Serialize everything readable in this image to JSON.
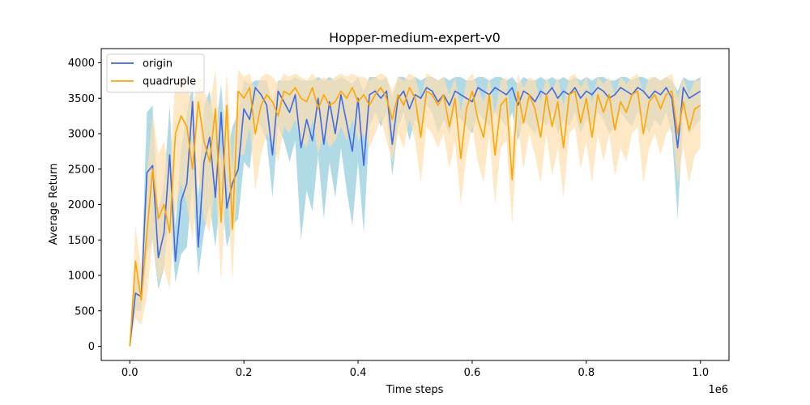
{
  "chart_data": {
    "type": "line",
    "title": "Hopper-medium-expert-v0",
    "xlabel": "Time steps",
    "ylabel": "Average Return",
    "x_offset_label": "1e6",
    "xlim": [
      -0.05,
      1.05
    ],
    "ylim": [
      -200,
      4200
    ],
    "x_ticks": [
      0.0,
      0.2,
      0.4,
      0.6,
      0.8,
      1.0
    ],
    "x_tick_labels": [
      "0.0",
      "0.2",
      "0.4",
      "0.6",
      "0.8",
      "1.0"
    ],
    "y_ticks": [
      0,
      500,
      1000,
      1500,
      2000,
      2500,
      3000,
      3500,
      4000
    ],
    "y_tick_labels": [
      "0",
      "500",
      "1000",
      "1500",
      "2000",
      "2500",
      "3000",
      "3500",
      "4000"
    ],
    "grid": false,
    "legend_position": "top-left",
    "x": [
      0.0,
      0.01,
      0.02,
      0.03,
      0.04,
      0.05,
      0.06,
      0.07,
      0.08,
      0.09,
      0.1,
      0.11,
      0.12,
      0.13,
      0.14,
      0.15,
      0.16,
      0.17,
      0.18,
      0.19,
      0.2,
      0.21,
      0.22,
      0.23,
      0.24,
      0.25,
      0.26,
      0.27,
      0.28,
      0.29,
      0.3,
      0.31,
      0.32,
      0.33,
      0.34,
      0.35,
      0.36,
      0.37,
      0.38,
      0.39,
      0.4,
      0.41,
      0.42,
      0.43,
      0.44,
      0.45,
      0.46,
      0.47,
      0.48,
      0.49,
      0.5,
      0.51,
      0.52,
      0.53,
      0.54,
      0.55,
      0.56,
      0.57,
      0.58,
      0.59,
      0.6,
      0.61,
      0.62,
      0.63,
      0.64,
      0.65,
      0.66,
      0.67,
      0.68,
      0.69,
      0.7,
      0.71,
      0.72,
      0.73,
      0.74,
      0.75,
      0.76,
      0.77,
      0.78,
      0.79,
      0.8,
      0.81,
      0.82,
      0.83,
      0.84,
      0.85,
      0.86,
      0.87,
      0.88,
      0.89,
      0.9,
      0.91,
      0.92,
      0.93,
      0.94,
      0.95,
      0.96,
      0.97,
      0.98,
      0.99,
      1.0
    ],
    "series": [
      {
        "name": "origin",
        "color": "#4169e1",
        "band_color": "#add8e6",
        "values": [
          0,
          750,
          700,
          2450,
          2550,
          1250,
          1600,
          2700,
          1200,
          2050,
          2300,
          3450,
          1400,
          2600,
          2950,
          2100,
          3300,
          1950,
          2300,
          2500,
          3350,
          3200,
          3650,
          3550,
          3400,
          2700,
          3600,
          3450,
          3300,
          3550,
          2800,
          3200,
          2900,
          3500,
          2850,
          3450,
          3000,
          3550,
          3150,
          2750,
          3500,
          2550,
          3550,
          3600,
          3500,
          3600,
          2850,
          3500,
          3600,
          3350,
          3550,
          3500,
          3650,
          3600,
          3450,
          3550,
          3400,
          3600,
          3550,
          3500,
          3450,
          3650,
          3600,
          3550,
          3650,
          3600,
          3550,
          3650,
          3400,
          3600,
          3550,
          3450,
          3600,
          3550,
          3650,
          3500,
          3600,
          3550,
          3650,
          3500,
          3600,
          3550,
          3650,
          3600,
          3500,
          3550,
          3650,
          3600,
          3550,
          3650,
          3600,
          3500,
          3600,
          3550,
          3650,
          3500,
          2800,
          3650,
          3500,
          3550,
          3600
        ],
        "lower": [
          0,
          500,
          500,
          1300,
          1500,
          800,
          1100,
          1900,
          900,
          1300,
          1400,
          2300,
          1000,
          1600,
          2000,
          1400,
          2200,
          1400,
          1700,
          1800,
          2600,
          2500,
          3200,
          3100,
          2900,
          2100,
          3100,
          2900,
          2600,
          2900,
          1500,
          2200,
          1900,
          2700,
          1800,
          2600,
          2100,
          2800,
          2200,
          1700,
          2600,
          1600,
          3100,
          3300,
          3100,
          3300,
          2400,
          3100,
          3300,
          2900,
          3200,
          3100,
          3400,
          3300,
          3000,
          3200,
          3000,
          3300,
          3200,
          3100,
          3000,
          3300,
          3200,
          3100,
          3300,
          3200,
          3100,
          3300,
          2900,
          3200,
          3100,
          3000,
          3200,
          3100,
          3300,
          3000,
          3200,
          3100,
          3300,
          3000,
          3200,
          3100,
          3300,
          3200,
          3000,
          3100,
          3300,
          3200,
          3100,
          3300,
          3200,
          3000,
          3200,
          3100,
          3300,
          3000,
          1800,
          3300,
          3000,
          3100,
          3200
        ],
        "upper": [
          0,
          1000,
          900,
          3300,
          3400,
          1900,
          2300,
          3400,
          1700,
          2800,
          3300,
          3700,
          2100,
          3400,
          3600,
          3000,
          3700,
          2700,
          3100,
          3300,
          3750,
          3700,
          3750,
          3750,
          3750,
          3400,
          3750,
          3750,
          3750,
          3800,
          3750,
          3750,
          3750,
          3800,
          3750,
          3800,
          3750,
          3800,
          3750,
          3700,
          3800,
          3600,
          3800,
          3800,
          3750,
          3800,
          3500,
          3800,
          3800,
          3750,
          3800,
          3750,
          3800,
          3800,
          3750,
          3800,
          3750,
          3800,
          3800,
          3750,
          3750,
          3800,
          3800,
          3750,
          3800,
          3800,
          3750,
          3800,
          3700,
          3800,
          3750,
          3750,
          3800,
          3750,
          3800,
          3750,
          3800,
          3750,
          3800,
          3750,
          3800,
          3750,
          3800,
          3800,
          3750,
          3750,
          3800,
          3800,
          3750,
          3800,
          3800,
          3750,
          3800,
          3750,
          3800,
          3750,
          3600,
          3800,
          3750,
          3750,
          3800
        ]
      },
      {
        "name": "quadruple",
        "color": "#ffa500",
        "band_color": "#ffdead",
        "values": [
          0,
          1200,
          650,
          1600,
          2500,
          1800,
          2000,
          1600,
          3000,
          3250,
          3100,
          2500,
          3450,
          2900,
          2600,
          3350,
          1750,
          3400,
          1650,
          3600,
          3500,
          3650,
          3000,
          3400,
          3550,
          3450,
          3250,
          3600,
          3550,
          3650,
          3500,
          3450,
          3650,
          3350,
          3550,
          3400,
          3450,
          3600,
          3500,
          3650,
          3450,
          3550,
          3400,
          3550,
          3650,
          3500,
          3200,
          3550,
          3400,
          3650,
          3500,
          2950,
          3600,
          3550,
          3400,
          3550,
          3100,
          3500,
          2650,
          3350,
          3600,
          3200,
          2950,
          3550,
          2700,
          3400,
          3500,
          2350,
          3600,
          3150,
          3550,
          3350,
          2950,
          3550,
          3100,
          3450,
          2800,
          3550,
          3600,
          3150,
          3500,
          2950,
          3550,
          3300,
          3550,
          3050,
          3450,
          3300,
          3550,
          3600,
          3000,
          3450,
          3550,
          3350,
          3550,
          3600,
          3000,
          3450,
          3050,
          3350,
          3400
        ],
        "lower": [
          0,
          400,
          300,
          700,
          1500,
          900,
          1100,
          800,
          1900,
          2300,
          2000,
          1500,
          2400,
          1800,
          1600,
          2300,
          900,
          2400,
          900,
          2700,
          2700,
          3100,
          2200,
          2700,
          3000,
          2900,
          2600,
          3100,
          3000,
          3200,
          2900,
          2800,
          3200,
          2700,
          3000,
          2800,
          2900,
          3100,
          2900,
          3200,
          2900,
          3000,
          2800,
          3000,
          3200,
          2900,
          2600,
          3000,
          2800,
          3200,
          2900,
          2300,
          3100,
          3000,
          2800,
          3000,
          2500,
          2900,
          2000,
          2700,
          3100,
          2600,
          2300,
          3000,
          2000,
          2800,
          2900,
          1700,
          3100,
          2500,
          3000,
          2700,
          2300,
          3000,
          2400,
          2800,
          2100,
          3000,
          3100,
          2500,
          2900,
          2300,
          3000,
          2600,
          3000,
          2400,
          2800,
          2600,
          3000,
          3100,
          2300,
          2800,
          3000,
          2700,
          3000,
          3100,
          2300,
          2800,
          2300,
          2700,
          2800
        ],
        "upper": [
          0,
          1700,
          1100,
          2400,
          3300,
          2700,
          2900,
          2400,
          3800,
          3900,
          3800,
          3300,
          3900,
          3600,
          3400,
          3900,
          2600,
          3900,
          2500,
          3900,
          3800,
          3850,
          3600,
          3800,
          3850,
          3800,
          3700,
          3850,
          3800,
          3850,
          3800,
          3750,
          3850,
          3750,
          3800,
          3750,
          3800,
          3850,
          3800,
          3850,
          3800,
          3800,
          3750,
          3800,
          3850,
          3800,
          3600,
          3800,
          3750,
          3850,
          3800,
          3500,
          3850,
          3800,
          3750,
          3800,
          3550,
          3800,
          3300,
          3750,
          3850,
          3650,
          3450,
          3800,
          3300,
          3750,
          3800,
          2900,
          3850,
          3650,
          3800,
          3750,
          3450,
          3800,
          3600,
          3800,
          3400,
          3800,
          3850,
          3650,
          3800,
          3450,
          3800,
          3700,
          3800,
          3550,
          3800,
          3700,
          3800,
          3850,
          3550,
          3800,
          3800,
          3750,
          3800,
          3850,
          3500,
          3800,
          3550,
          3750,
          3750
        ]
      }
    ]
  }
}
